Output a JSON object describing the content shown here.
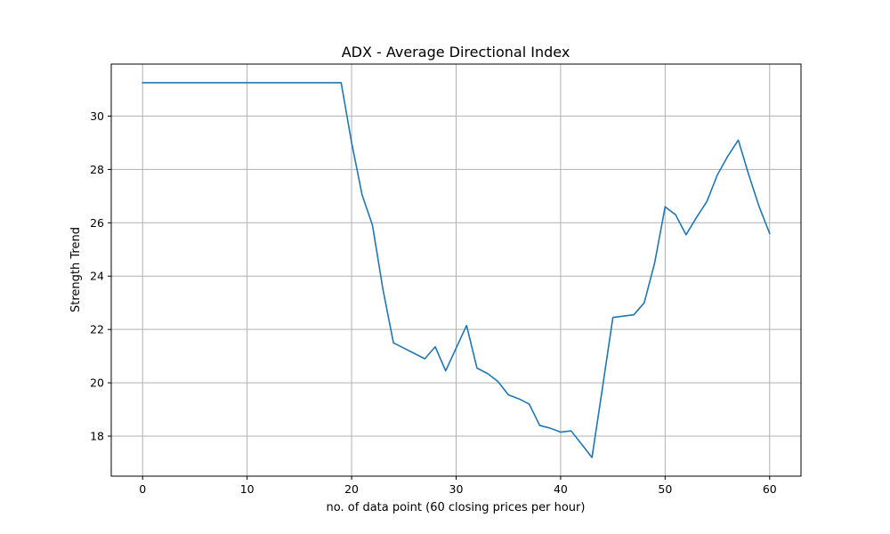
{
  "chart_data": {
    "type": "line",
    "title": "ADX - Average Directional Index",
    "xlabel": "no. of data point (60 closing prices per hour)",
    "ylabel": "Strength Trend",
    "xlim": [
      -3,
      63
    ],
    "ylim": [
      16.5,
      31.95
    ],
    "x_ticks": [
      0,
      10,
      20,
      30,
      40,
      50,
      60
    ],
    "y_ticks": [
      18,
      20,
      22,
      24,
      26,
      28,
      30
    ],
    "grid": true,
    "line_color": "#1f77b4",
    "series": [
      {
        "x": [
          0,
          1,
          2,
          3,
          4,
          5,
          6,
          7,
          8,
          9,
          10,
          11,
          12,
          13,
          14,
          15,
          16,
          17,
          18,
          19,
          20,
          21,
          22,
          23,
          24,
          25,
          26,
          27,
          28,
          29,
          30,
          31,
          32,
          33,
          34,
          35,
          36,
          37,
          38,
          39,
          40,
          41,
          42,
          43,
          44,
          45,
          46,
          47,
          48,
          49,
          50,
          51,
          52,
          53,
          54,
          55,
          56,
          57,
          58,
          59,
          60
        ],
        "y": [
          31.25,
          31.25,
          31.25,
          31.25,
          31.25,
          31.25,
          31.25,
          31.25,
          31.25,
          31.25,
          31.25,
          31.25,
          31.25,
          31.25,
          31.25,
          31.25,
          31.25,
          31.25,
          31.25,
          31.25,
          29.0,
          27.05,
          25.9,
          23.5,
          21.5,
          21.3,
          21.1,
          20.9,
          21.35,
          20.45,
          21.3,
          22.15,
          20.55,
          20.35,
          20.05,
          19.55,
          19.4,
          19.2,
          18.4,
          18.3,
          18.15,
          18.2,
          17.7,
          17.2,
          19.8,
          22.45,
          22.5,
          22.55,
          23.0,
          24.5,
          26.6,
          26.3,
          25.55,
          26.2,
          26.8,
          27.8,
          28.5,
          29.1,
          27.8,
          26.6,
          25.6
        ]
      }
    ]
  }
}
